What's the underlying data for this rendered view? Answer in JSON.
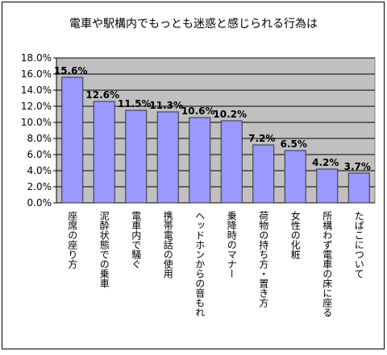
{
  "chart_data": {
    "type": "bar",
    "title": "電車や駅構内でもっとも迷惑と感じられる行為は",
    "categories": [
      "座席の座り方",
      "泥酔状態での乗車",
      "電車内で騒ぐ",
      "携帯電話の使用",
      "ヘッドホンからの音もれ",
      "乗降時のマナー",
      "荷物の持ち方・置き方",
      "女性の化粧",
      "所構わず電車の床に座る",
      "たばこについて"
    ],
    "values": [
      15.6,
      12.6,
      11.5,
      11.3,
      10.6,
      10.2,
      7.2,
      6.5,
      4.2,
      3.7
    ],
    "value_labels": [
      "15.6%",
      "12.6%",
      "11.5%",
      "11.3%",
      "10.6%",
      "10.2%",
      "7.2%",
      "6.5%",
      "4.2%",
      "3.7%"
    ],
    "color": "#9999ff",
    "ylim": [
      0,
      18
    ],
    "yticks": [
      {
        "value": 0,
        "label": "0.0%"
      },
      {
        "value": 2,
        "label": "2.0%"
      },
      {
        "value": 4,
        "label": "4.0%"
      },
      {
        "value": 6,
        "label": "6.0%"
      },
      {
        "value": 8,
        "label": "8.0%"
      },
      {
        "value": 10,
        "label": "10.0%"
      },
      {
        "value": 12,
        "label": "12.0%"
      },
      {
        "value": 14,
        "label": "14.0%"
      },
      {
        "value": 16,
        "label": "16.0%"
      },
      {
        "value": 18,
        "label": "18.0%"
      }
    ],
    "grid": true
  }
}
